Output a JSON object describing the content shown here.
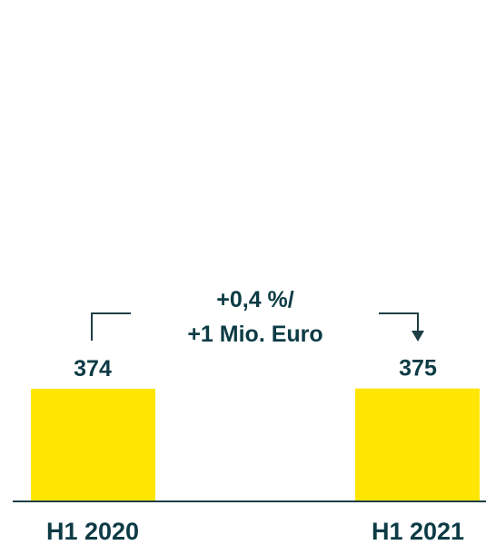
{
  "chart_data": {
    "type": "bar",
    "categories": [
      "H1 2020",
      "H1 2021"
    ],
    "values": [
      374,
      375
    ],
    "value_labels": [
      "374",
      "375"
    ],
    "annotation": {
      "lines": [
        "+0,4 %/",
        "+1 Mio. Euro"
      ]
    },
    "colors": {
      "bar": "#ffe600",
      "text": "#0d3b45",
      "axis": "#1f3d44"
    },
    "grid": false,
    "legend": "none"
  }
}
